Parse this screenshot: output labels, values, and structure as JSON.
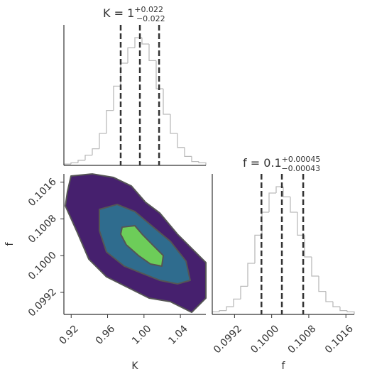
{
  "chart_data": [
    {
      "type": "histogram",
      "title": "K = 1",
      "title_sup": "+0.022",
      "title_sub": "−0.022",
      "color": "#bbbbbb",
      "bins": [
        0.912,
        0.9198,
        0.9276,
        0.9354,
        0.9432,
        0.951,
        0.9588,
        0.9666,
        0.9744,
        0.9822,
        0.99,
        0.9978,
        1.0056,
        1.0134,
        1.0212,
        1.029,
        1.0368,
        1.0446,
        1.0524,
        1.0602,
        1.068
      ],
      "counts": [
        1,
        2,
        4,
        8,
        13,
        25,
        43,
        62,
        80,
        92,
        100,
        95,
        82,
        60,
        40,
        25,
        14,
        7,
        3,
        2
      ],
      "quantiles": [
        0.9744,
        0.9955,
        1.0166
      ],
      "xlim": [
        0.912,
        1.068
      ],
      "ylim": [
        0,
        110
      ]
    },
    {
      "type": "contour",
      "xlabel": "K",
      "ylabel": "f",
      "xlim": [
        0.912,
        1.068
      ],
      "ylim": [
        0.09872,
        0.10178
      ],
      "xticks": [
        0.92,
        0.96,
        {
          "value": 1.0,
          "label": "1.00"
        },
        1.04
      ],
      "yticks": [
        0.0992,
        {
          "value": 0.1,
          "label": "0.1000"
        },
        0.1008,
        0.1016
      ],
      "levels": [
        {
          "color": "#46206e",
          "x": [
            0.9198,
            0.9432,
            0.9666,
            0.9861,
            1.0017,
            1.0173,
            1.0368,
            1.0563,
            1.068,
            1.068,
            1.0524,
            1.029,
            1.0056,
            0.9822,
            0.9588,
            0.9393,
            0.9276,
            0.9136,
            0.9159
          ],
          "y": [
            0.101733,
            0.101779,
            0.101702,
            0.101516,
            0.101161,
            0.100929,
            0.100466,
            0.10008,
            0.099848,
            0.099075,
            0.098766,
            0.098998,
            0.099075,
            0.099307,
            0.099539,
            0.099925,
            0.100466,
            0.101084,
            0.101393
          ]
        },
        {
          "color": "#2f6c8e",
          "x": [
            0.951,
            0.9705,
            0.99,
            1.0056,
            1.029,
            1.0462,
            1.0508,
            1.0368,
            1.0173,
            0.9978,
            0.9783,
            0.9588,
            0.951
          ],
          "y": [
            0.101007,
            0.101115,
            0.10096,
            0.100698,
            0.100311,
            0.099879,
            0.099462,
            0.099384,
            0.099462,
            0.099616,
            0.099771,
            0.10008,
            0.100543
          ]
        },
        {
          "color": "#6dcd59",
          "x": [
            0.976,
            0.99,
            0.998,
            1.0095,
            1.0212,
            1.0196,
            1.0072,
            0.9939,
            0.9806,
            0.9744
          ],
          "y": [
            0.10062,
            0.100651,
            0.100466,
            0.100234,
            0.100002,
            0.099771,
            0.099817,
            0.100002,
            0.100234,
            0.100466
          ]
        }
      ]
    },
    {
      "type": "histogram",
      "title": "f = 0.1",
      "title_sup": "+0.00045",
      "title_sub": "−0.00043",
      "xlabel": "f",
      "color": "#bbbbbb",
      "bins": [
        0.09872,
        0.098873,
        0.099026,
        0.099179,
        0.099332,
        0.099485,
        0.099638,
        0.099791,
        0.099944,
        0.100097,
        0.10025,
        0.100403,
        0.100556,
        0.100709,
        0.100862,
        0.101015,
        0.101168,
        0.101321,
        0.101474,
        0.101627,
        0.10178
      ],
      "counts": [
        2,
        3,
        6,
        12,
        22,
        40,
        62,
        80,
        95,
        100,
        92,
        80,
        62,
        45,
        30,
        18,
        10,
        6,
        3,
        2
      ],
      "quantiles": [
        0.09978,
        0.10022,
        0.10068
      ],
      "xlim": [
        0.09872,
        0.10178
      ],
      "ylim": [
        0,
        110
      ],
      "xticks": [
        0.0992,
        {
          "value": 0.1,
          "label": "0.1000"
        },
        0.1008,
        0.1016
      ]
    }
  ]
}
